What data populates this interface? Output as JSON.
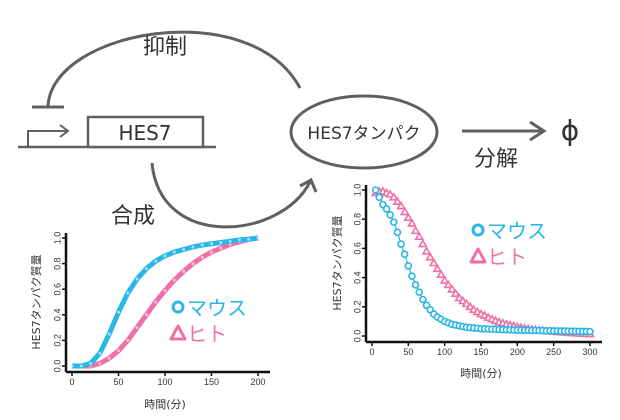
{
  "diagram": {
    "gene_label": "HES7",
    "protein_label": "HES7タンパク",
    "inhibition_label": "抑制",
    "synthesis_label": "合成",
    "degradation_label": "分解",
    "degradation_product": "ϕ",
    "colors": {
      "line": "#606060",
      "mouse": "#29b6e8",
      "human": "#ef6fa6"
    }
  },
  "chart_data": [
    {
      "type": "line",
      "title": "",
      "xlabel": "時間(分)",
      "ylabel": "HES7タンパク質量",
      "xlim": [
        0,
        200
      ],
      "ylim": [
        0,
        1.0
      ],
      "xticks": [
        "0",
        "50",
        "100",
        "150",
        "200"
      ],
      "yticks": [
        "0.0",
        "0.2",
        "0.4",
        "0.6",
        "0.8",
        "1.0"
      ],
      "legend_position": "right-middle",
      "x": [
        0,
        10,
        20,
        30,
        40,
        50,
        60,
        70,
        80,
        90,
        100,
        110,
        120,
        130,
        140,
        150,
        160,
        170,
        180,
        190,
        200
      ],
      "series": [
        {
          "name": "マウス",
          "marker": "circle",
          "color": "#29b6e8",
          "values": [
            0,
            0,
            0.02,
            0.1,
            0.25,
            0.42,
            0.57,
            0.68,
            0.76,
            0.82,
            0.86,
            0.89,
            0.91,
            0.93,
            0.945,
            0.955,
            0.965,
            0.975,
            0.985,
            0.99,
            1.0
          ]
        },
        {
          "name": "ヒト",
          "marker": "triangle",
          "color": "#ef6fa6",
          "values": [
            0,
            0,
            0,
            0.02,
            0.06,
            0.12,
            0.2,
            0.3,
            0.4,
            0.5,
            0.59,
            0.67,
            0.74,
            0.8,
            0.85,
            0.89,
            0.92,
            0.95,
            0.97,
            0.99,
            1.0
          ]
        }
      ]
    },
    {
      "type": "line",
      "title": "",
      "xlabel": "時間(分)",
      "ylabel": "HES7タンパク質量",
      "xlim": [
        0,
        300
      ],
      "ylim": [
        0,
        1.0
      ],
      "xticks": [
        "0",
        "50",
        "100",
        "150",
        "200",
        "250",
        "300"
      ],
      "yticks": [
        "0.0",
        "0.2",
        "0.4",
        "0.6",
        "0.8",
        "1.0"
      ],
      "legend_position": "right-top",
      "x": [
        5,
        10,
        15,
        20,
        25,
        30,
        35,
        40,
        45,
        50,
        55,
        60,
        65,
        70,
        75,
        80,
        85,
        90,
        95,
        100,
        105,
        110,
        115,
        120,
        125,
        130,
        135,
        140,
        145,
        150,
        155,
        160,
        165,
        170,
        175,
        180,
        185,
        190,
        195,
        200,
        205,
        210,
        215,
        220,
        225,
        230,
        235,
        240,
        245,
        250,
        255,
        260,
        265,
        270,
        275,
        280,
        285,
        290,
        295,
        300
      ],
      "series": [
        {
          "name": "マウス",
          "marker": "circle",
          "color": "#29b6e8",
          "values": [
            1.0,
            0.95,
            0.9,
            0.87,
            0.83,
            0.78,
            0.71,
            0.63,
            0.56,
            0.48,
            0.41,
            0.35,
            0.3,
            0.25,
            0.21,
            0.18,
            0.15,
            0.13,
            0.115,
            0.1,
            0.09,
            0.08,
            0.075,
            0.07,
            0.065,
            0.06,
            0.058,
            0.055,
            0.053,
            0.05,
            0.049,
            0.048,
            0.047,
            0.046,
            0.045,
            0.044,
            0.043,
            0.042,
            0.041,
            0.04,
            0.04,
            0.039,
            0.039,
            0.038,
            0.038,
            0.037,
            0.037,
            0.036,
            0.036,
            0.035,
            0.035,
            0.034,
            0.034,
            0.033,
            0.033,
            0.032,
            0.032,
            0.031,
            0.031,
            0.03
          ]
        },
        {
          "name": "ヒト",
          "marker": "triangle",
          "color": "#ef6fa6",
          "values": [
            0.98,
            0.99,
            0.99,
            0.98,
            0.97,
            0.95,
            0.92,
            0.89,
            0.85,
            0.81,
            0.77,
            0.72,
            0.68,
            0.63,
            0.58,
            0.54,
            0.5,
            0.46,
            0.42,
            0.38,
            0.35,
            0.32,
            0.29,
            0.26,
            0.24,
            0.22,
            0.2,
            0.18,
            0.165,
            0.15,
            0.14,
            0.125,
            0.115,
            0.105,
            0.095,
            0.088,
            0.08,
            0.074,
            0.068,
            0.062,
            0.057,
            0.053,
            0.049,
            0.045,
            0.042,
            0.039,
            0.036,
            0.034,
            0.032,
            0.03,
            0.028,
            0.026,
            0.024,
            0.022,
            0.02,
            0.019,
            0.017,
            0.016,
            0.014,
            0.013
          ]
        }
      ]
    }
  ]
}
